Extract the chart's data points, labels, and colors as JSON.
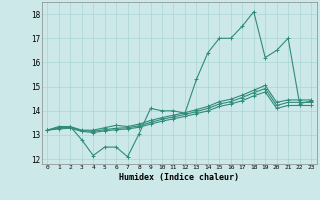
{
  "xlabel": "Humidex (Indice chaleur)",
  "x_values": [
    0,
    1,
    2,
    3,
    4,
    5,
    6,
    7,
    8,
    9,
    10,
    11,
    12,
    13,
    14,
    15,
    16,
    17,
    18,
    19,
    20,
    21,
    22,
    23
  ],
  "line1": [
    13.2,
    13.35,
    13.35,
    12.8,
    12.15,
    12.5,
    12.5,
    12.1,
    13.05,
    14.1,
    14.0,
    14.0,
    13.9,
    15.3,
    16.4,
    17.0,
    17.0,
    17.5,
    18.1,
    16.2,
    16.5,
    17.0,
    14.3,
    14.4
  ],
  "line2": [
    13.2,
    13.3,
    13.35,
    13.2,
    13.2,
    13.3,
    13.4,
    13.35,
    13.45,
    13.6,
    13.72,
    13.82,
    13.92,
    14.05,
    14.18,
    14.38,
    14.48,
    14.65,
    14.85,
    15.05,
    14.35,
    14.45,
    14.45,
    14.45
  ],
  "line3": [
    13.2,
    13.28,
    13.32,
    13.18,
    13.15,
    13.22,
    13.28,
    13.3,
    13.38,
    13.52,
    13.65,
    13.75,
    13.85,
    13.97,
    14.1,
    14.28,
    14.38,
    14.55,
    14.75,
    14.92,
    14.22,
    14.35,
    14.35,
    14.35
  ],
  "line4": [
    13.2,
    13.25,
    13.28,
    13.15,
    13.1,
    13.17,
    13.22,
    13.25,
    13.32,
    13.45,
    13.57,
    13.67,
    13.77,
    13.88,
    14.0,
    14.18,
    14.28,
    14.42,
    14.62,
    14.78,
    14.1,
    14.22,
    14.22,
    14.22
  ],
  "line_color": "#2e8b7a",
  "bg_color": "#cce8e8",
  "grid_color": "#aad4d4",
  "ylim": [
    11.8,
    18.5
  ],
  "yticks": [
    12,
    13,
    14,
    15,
    16,
    17,
    18
  ],
  "xlim": [
    -0.5,
    23.5
  ],
  "xtick_labels": [
    "0",
    "1",
    "2",
    "3",
    "4",
    "5",
    "6",
    "7",
    "8",
    "9",
    "10",
    "11",
    "12",
    "13",
    "14",
    "15",
    "16",
    "17",
    "18",
    "19",
    "20",
    "21",
    "22",
    "23"
  ]
}
